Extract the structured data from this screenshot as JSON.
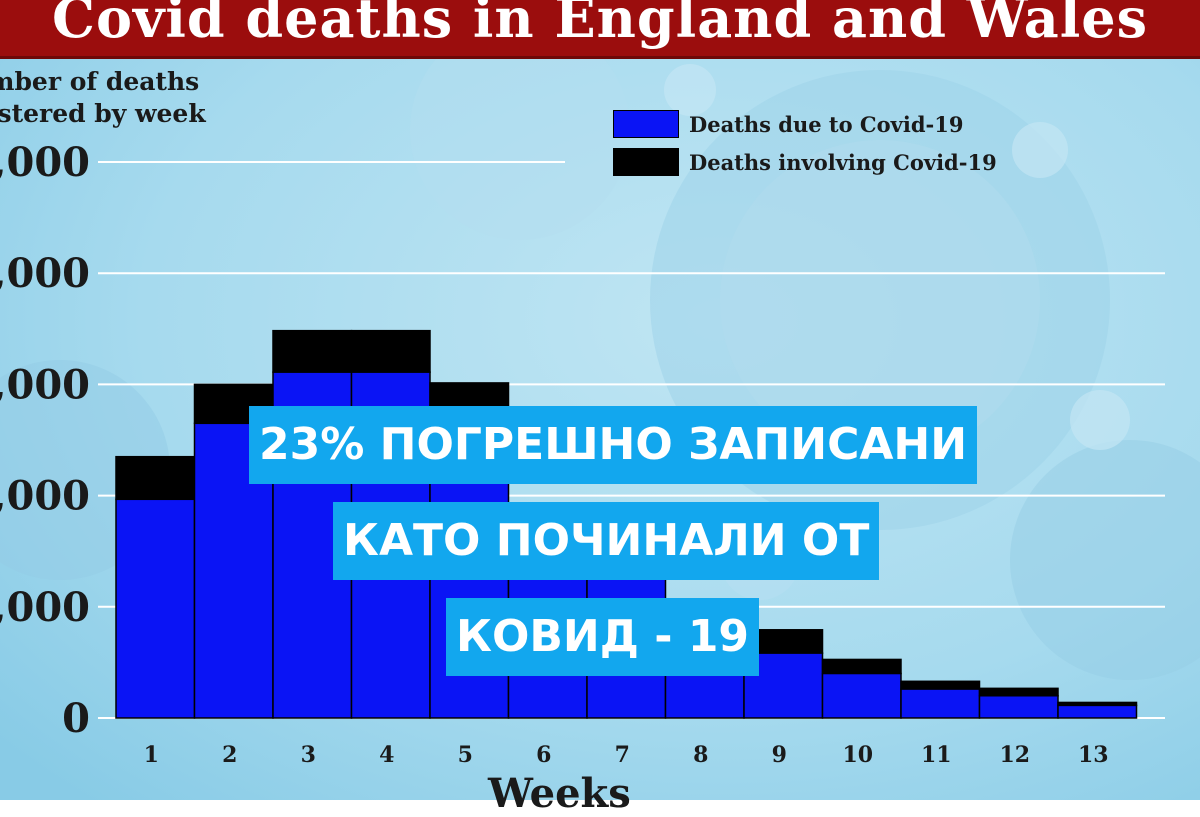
{
  "title": "Covid deaths in England and Wales",
  "ylabel_lines": [
    "mber of deaths",
    "istered by week"
  ],
  "legend": [
    {
      "label": "Deaths due to Covid-19",
      "color": "#0a14f5"
    },
    {
      "label": "Deaths involving Covid-19",
      "color": "#000000"
    }
  ],
  "overlay_text": [
    "23% ПОГРЕШНО ЗАПИСАНИ",
    "КАТО ПОЧИНАЛИ ОТ",
    "КОВИД - 19"
  ],
  "colors": {
    "due": "#0a14f5",
    "involving": "#000000",
    "title_bg": "#9b0d0d",
    "banner": "#12a7ee"
  },
  "chart_data": {
    "type": "bar",
    "stacked": true,
    "title": "Covid deaths in England and Wales",
    "xlabel": "Weeks",
    "ylabel": "Number of deaths registered by week",
    "categories": [
      "1",
      "2",
      "3",
      "4",
      "5",
      "6",
      "7",
      "8",
      "9",
      "10",
      "11",
      "12",
      "13"
    ],
    "series": [
      {
        "name": "Deaths due to Covid-19",
        "values": [
          5900,
          7950,
          9330,
          9330,
          7950,
          5000,
          3900,
          2700,
          1750,
          1200,
          780,
          600,
          340
        ]
      },
      {
        "name": "Deaths involving Covid-19",
        "values": [
          1150,
          1050,
          1120,
          1120,
          1090,
          750,
          270,
          380,
          630,
          380,
          210,
          200,
          80
        ]
      }
    ],
    "ylim": [
      0,
      15000
    ],
    "yticks": [
      {
        "value": 0,
        "label": "0"
      },
      {
        "value": 3000,
        "label": ",000"
      },
      {
        "value": 6000,
        "label": ",000"
      },
      {
        "value": 9000,
        "label": ",000"
      },
      {
        "value": 12000,
        "label": ",000"
      },
      {
        "value": 15000,
        "label": ",000"
      }
    ],
    "grid": true,
    "legend_position": "top-right"
  }
}
